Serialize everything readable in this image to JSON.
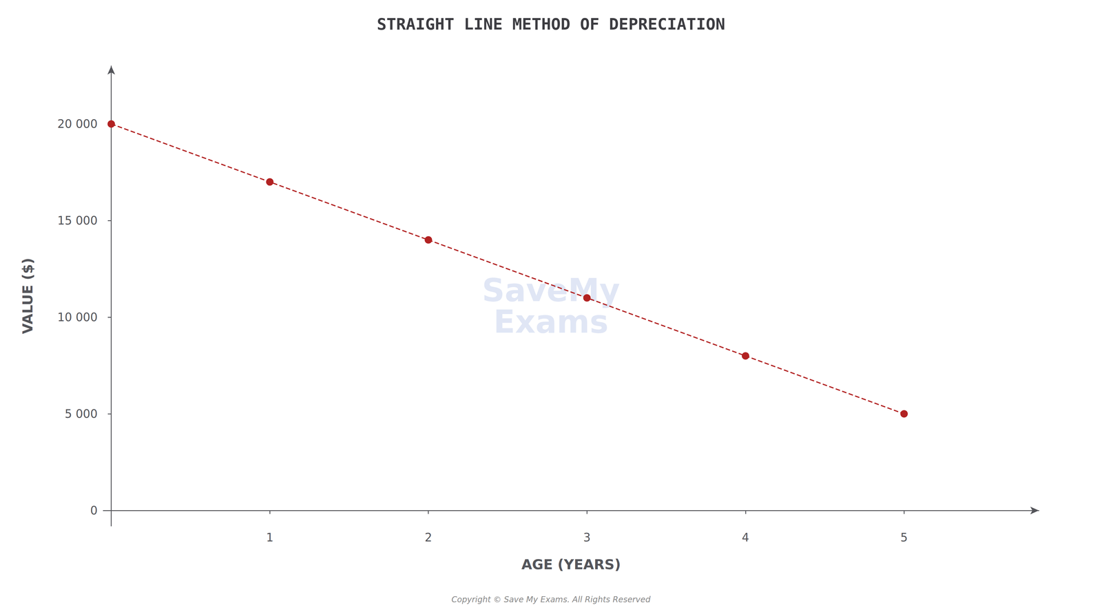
{
  "chart_data": {
    "type": "line",
    "title": "STRAIGHT LINE METHOD OF DEPRECIATION",
    "x_label": "AGE (YEARS)",
    "y_label": "VALUE ($)",
    "x": [
      0,
      1,
      2,
      3,
      4,
      5
    ],
    "values": [
      20000,
      17000,
      14000,
      11000,
      8000,
      5000
    ],
    "color": "#b22222",
    "line_style": "dashed",
    "marker": "circle",
    "xlim": [
      -0.05,
      5.85
    ],
    "ylim": [
      -800,
      23000
    ],
    "xticks": [
      1,
      2,
      3,
      4,
      5
    ],
    "yticks": [
      0,
      {
        "value": 5000,
        "label": "5 000"
      },
      {
        "value": 10000,
        "label": "10 000"
      },
      {
        "value": 15000,
        "label": "15 000"
      },
      {
        "value": 20000,
        "label": "20 000"
      }
    ],
    "grid": false,
    "annotations": [
      "SaveMy\nExams",
      "Copyright © Save My Exams. All Rights Reserved"
    ]
  }
}
